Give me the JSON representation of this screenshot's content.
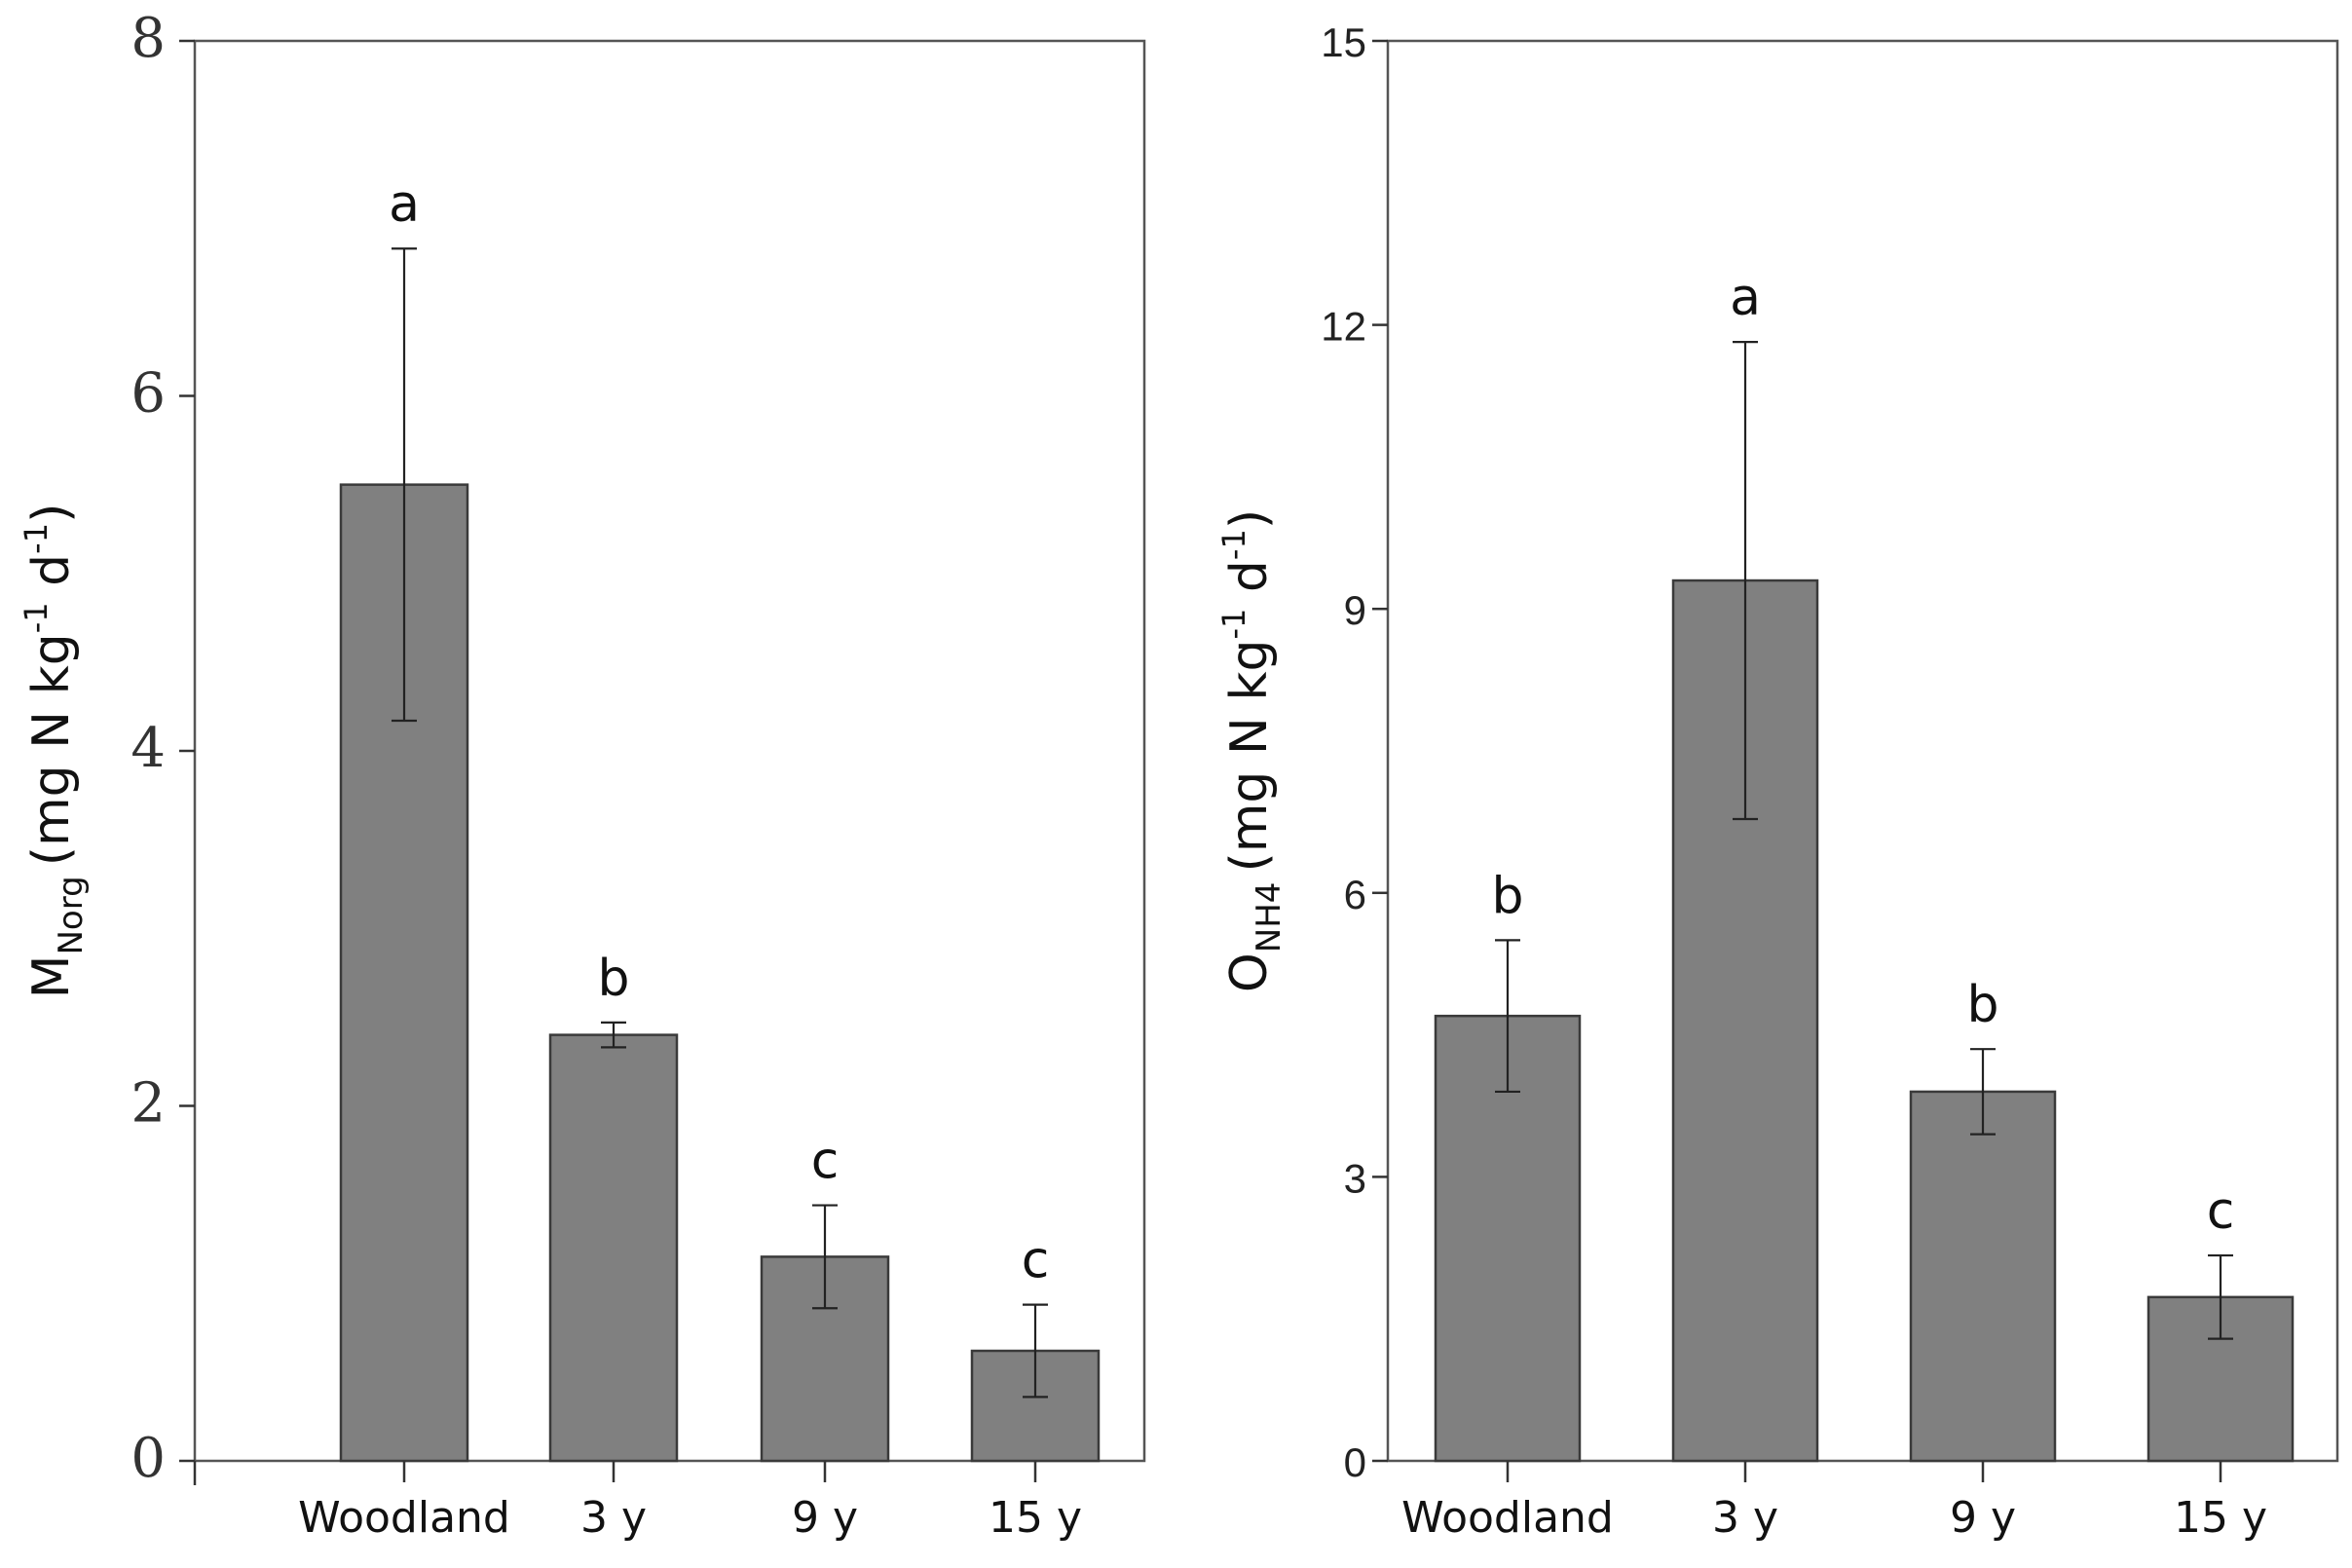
{
  "chart_data": [
    {
      "type": "bar",
      "categories": [
        "Woodland",
        "3 y",
        "9 y",
        "15 y"
      ],
      "values": [
        5.5,
        2.4,
        1.15,
        0.62
      ],
      "errors": [
        1.33,
        0.07,
        0.29,
        0.26
      ],
      "letters": [
        "a",
        "b",
        "c",
        "c"
      ],
      "ylabel_main": "M",
      "ylabel_sub": "Norg",
      "ylabel_unit": "(mg N kg",
      "ylabel_exp1": "-1",
      "ylabel_d": " d",
      "ylabel_exp2": "-1",
      "ylabel_close": ")",
      "ylim": [
        0,
        8
      ],
      "yticks": [
        "0",
        "2",
        "4",
        "6",
        "8"
      ],
      "grid": false,
      "color": "#808080"
    },
    {
      "type": "bar",
      "categories": [
        "Woodland",
        "3 y",
        "9 y",
        "15 y"
      ],
      "values": [
        4.7,
        9.3,
        3.9,
        1.73
      ],
      "errors": [
        0.8,
        2.52,
        0.45,
        0.44
      ],
      "letters": [
        "b",
        "a",
        "b",
        "c"
      ],
      "ylabel_main": "O",
      "ylabel_sub": "NH4",
      "ylabel_unit": "(mg N kg",
      "ylabel_exp1": "-1",
      "ylabel_d": " d",
      "ylabel_exp2": "-1",
      "ylabel_close": ")",
      "ylim": [
        0,
        15
      ],
      "yticks": [
        "0",
        "3",
        "6",
        "9",
        "12",
        "15"
      ],
      "grid": false,
      "color": "#808080"
    }
  ]
}
